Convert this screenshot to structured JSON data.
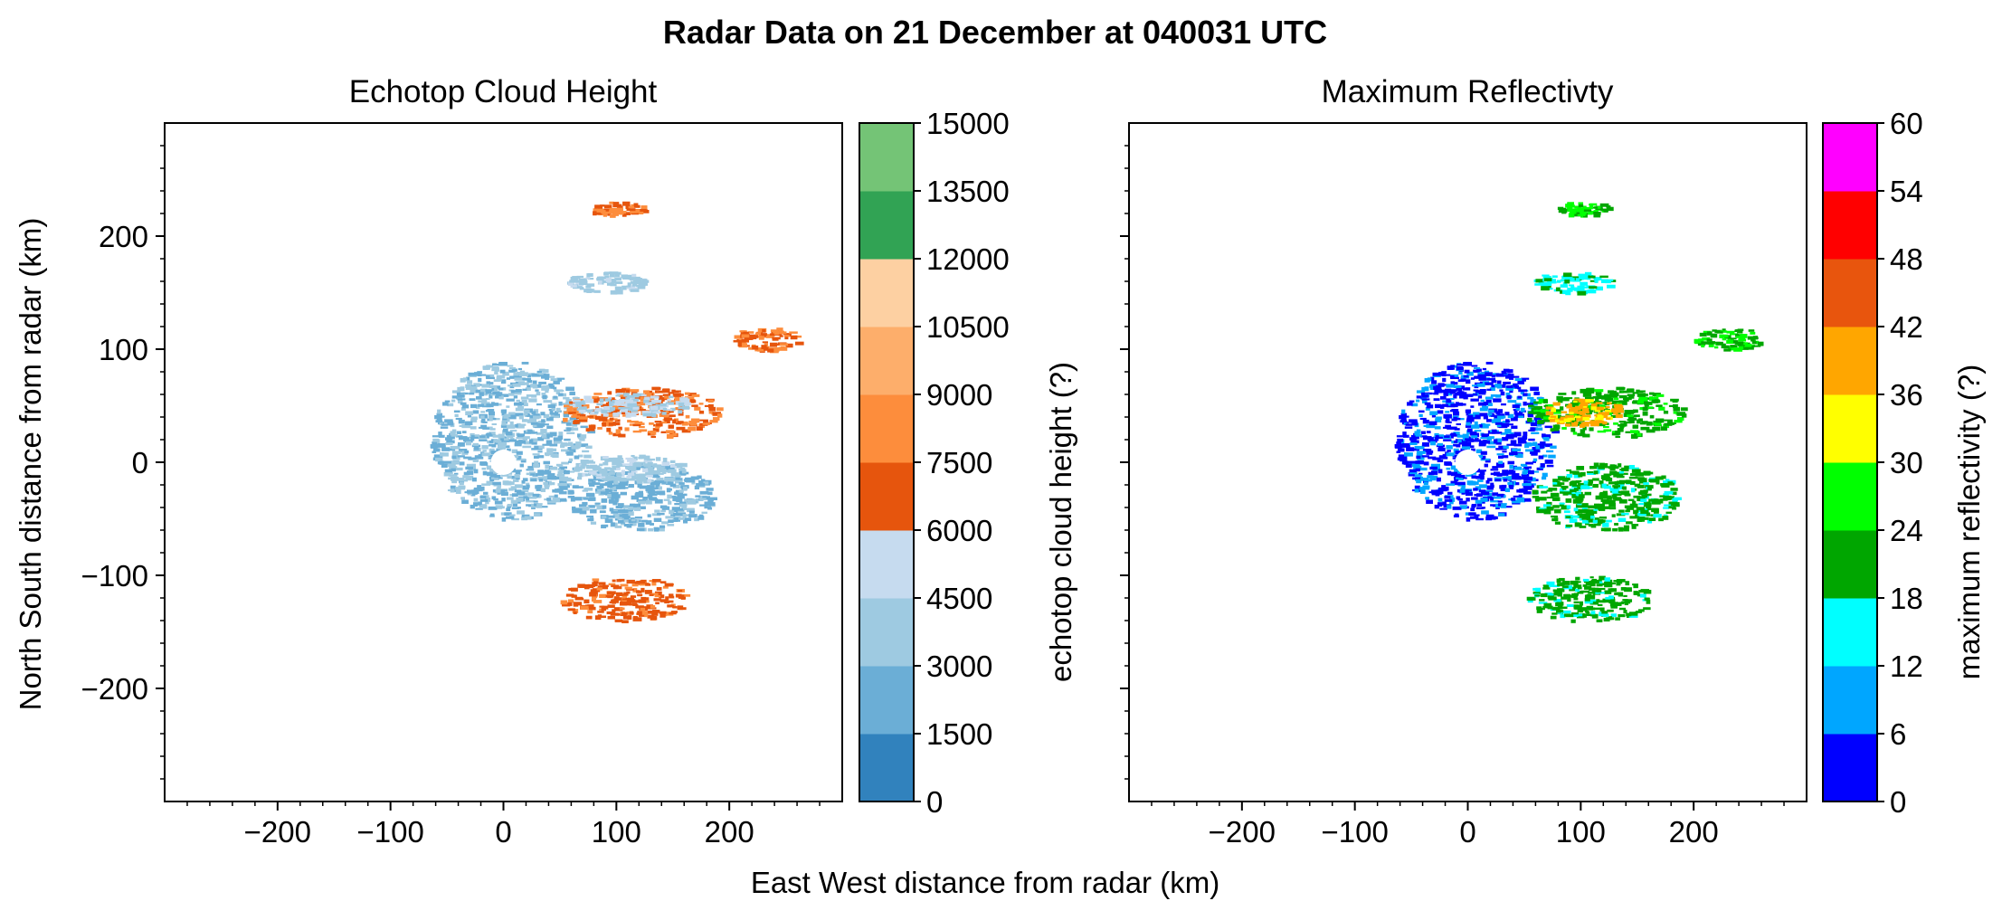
{
  "figure": {
    "suptitle": "Radar Data on 21 December at 040031 UTC",
    "shared_xlabel": "East West distance from radar (km)",
    "shared_ylabel": "North South distance from radar (km)"
  },
  "chart_data": [
    {
      "type": "heatmap",
      "title": "Echotop Cloud Height",
      "xlabel": "East West distance from radar (km)",
      "ylabel": "North South distance from radar (km)",
      "xlim": [
        -300,
        300
      ],
      "ylim": [
        -300,
        300
      ],
      "xticks": [
        -200,
        -100,
        0,
        100,
        200
      ],
      "yticks": [
        -200,
        -100,
        0,
        100,
        200
      ],
      "colorbar": {
        "label": "echotop cloud height (?)",
        "levels": [
          0,
          1500,
          3000,
          4500,
          6000,
          7500,
          9000,
          10500,
          12000,
          13500,
          15000
        ],
        "colors": [
          "#3182bd",
          "#6baed6",
          "#9ecae1",
          "#c6dbef",
          "#e6550d",
          "#fd8d3c",
          "#fdae6b",
          "#fdd0a2",
          "#31a354",
          "#74c476"
        ]
      },
      "regions": [
        {
          "cx": 5,
          "cy": 20,
          "rx": 70,
          "ry": 70,
          "value": 3000,
          "note": "dense near-radar echoes"
        },
        {
          "cx": 120,
          "cy": 45,
          "rx": 70,
          "ry": 22,
          "value": 7500
        },
        {
          "cx": 110,
          "cy": 52,
          "rx": 55,
          "ry": 10,
          "value": 4500
        },
        {
          "cx": 120,
          "cy": -30,
          "rx": 65,
          "ry": 30,
          "value": 2500
        },
        {
          "cx": 110,
          "cy": -5,
          "rx": 50,
          "ry": 12,
          "value": 4000
        },
        {
          "cx": 105,
          "cy": -120,
          "rx": 55,
          "ry": 20,
          "value": 7000
        },
        {
          "cx": 230,
          "cy": 110,
          "rx": 30,
          "ry": 10,
          "value": 7500
        },
        {
          "cx": 100,
          "cy": 225,
          "rx": 25,
          "ry": 6,
          "value": 7500
        },
        {
          "cx": 90,
          "cy": 160,
          "rx": 35,
          "ry": 9,
          "value": 4000
        }
      ]
    },
    {
      "type": "heatmap",
      "title": "Maximum Reflectivty",
      "xlabel": "East West distance from radar (km)",
      "xlim": [
        -300,
        300
      ],
      "ylim": [
        -300,
        300
      ],
      "xticks": [
        -200,
        -100,
        0,
        100,
        200
      ],
      "yticks": [
        -200,
        -100,
        0,
        100,
        200
      ],
      "colorbar": {
        "label": "maximum reflectivity (?)",
        "levels": [
          0,
          6,
          12,
          18,
          24,
          30,
          36,
          42,
          48,
          54,
          60
        ],
        "colors": [
          "#0000ff",
          "#00a6ff",
          "#00ffff",
          "#00a600",
          "#00ff00",
          "#ffff00",
          "#ffa600",
          "#e8550d",
          "#ff0000",
          "#ff00ff"
        ]
      },
      "regions": [
        {
          "cx": 5,
          "cy": 20,
          "rx": 70,
          "ry": 70,
          "value": 5,
          "note": "dense near-radar echoes"
        },
        {
          "cx": 120,
          "cy": 45,
          "rx": 70,
          "ry": 22,
          "value": 22
        },
        {
          "cx": 100,
          "cy": 45,
          "rx": 35,
          "ry": 12,
          "value": 38
        },
        {
          "cx": 120,
          "cy": -30,
          "rx": 65,
          "ry": 30,
          "value": 20
        },
        {
          "cx": 105,
          "cy": -120,
          "rx": 55,
          "ry": 20,
          "value": 20
        },
        {
          "cx": 230,
          "cy": 110,
          "rx": 30,
          "ry": 10,
          "value": 24
        },
        {
          "cx": 100,
          "cy": 225,
          "rx": 25,
          "ry": 6,
          "value": 24
        },
        {
          "cx": 90,
          "cy": 160,
          "rx": 35,
          "ry": 9,
          "value": 16
        }
      ]
    }
  ]
}
